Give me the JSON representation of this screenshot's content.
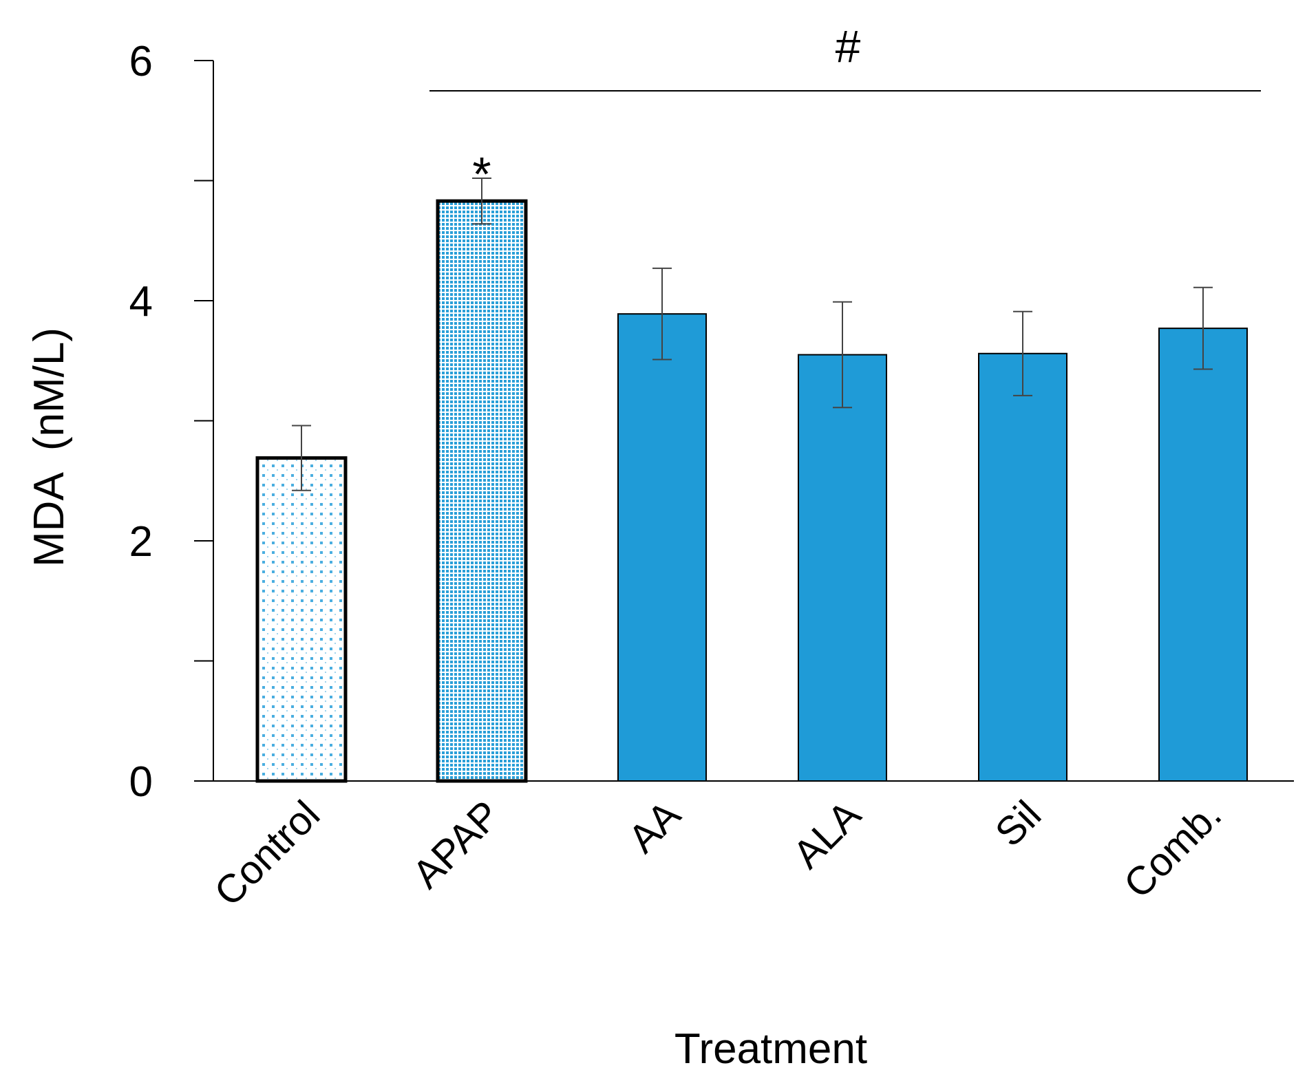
{
  "chart_data": {
    "type": "bar",
    "title": "",
    "xlabel": "Treatment",
    "ylabel": "MDA  (nM/L)",
    "ylim": [
      0,
      6
    ],
    "yticks": [
      0,
      2,
      4,
      6
    ],
    "y_minor_ticks": [
      1,
      3,
      5
    ],
    "grid": false,
    "categories": [
      "Control",
      "APAP",
      "AA",
      "ALA",
      "Sil",
      "Comb."
    ],
    "values": [
      2.69,
      4.83,
      3.89,
      3.55,
      3.56,
      3.77
    ],
    "errors": [
      0.27,
      0.19,
      0.38,
      0.44,
      0.35,
      0.34
    ],
    "fills": [
      "dotted-light",
      "dotted-dense",
      "solid",
      "solid",
      "solid",
      "solid"
    ],
    "color": "#1f9bd7",
    "annotations": {
      "asterisk": {
        "text": "*",
        "category": "APAP"
      },
      "hash": {
        "text": "#",
        "span": [
          "APAP",
          "Comb."
        ]
      }
    }
  }
}
